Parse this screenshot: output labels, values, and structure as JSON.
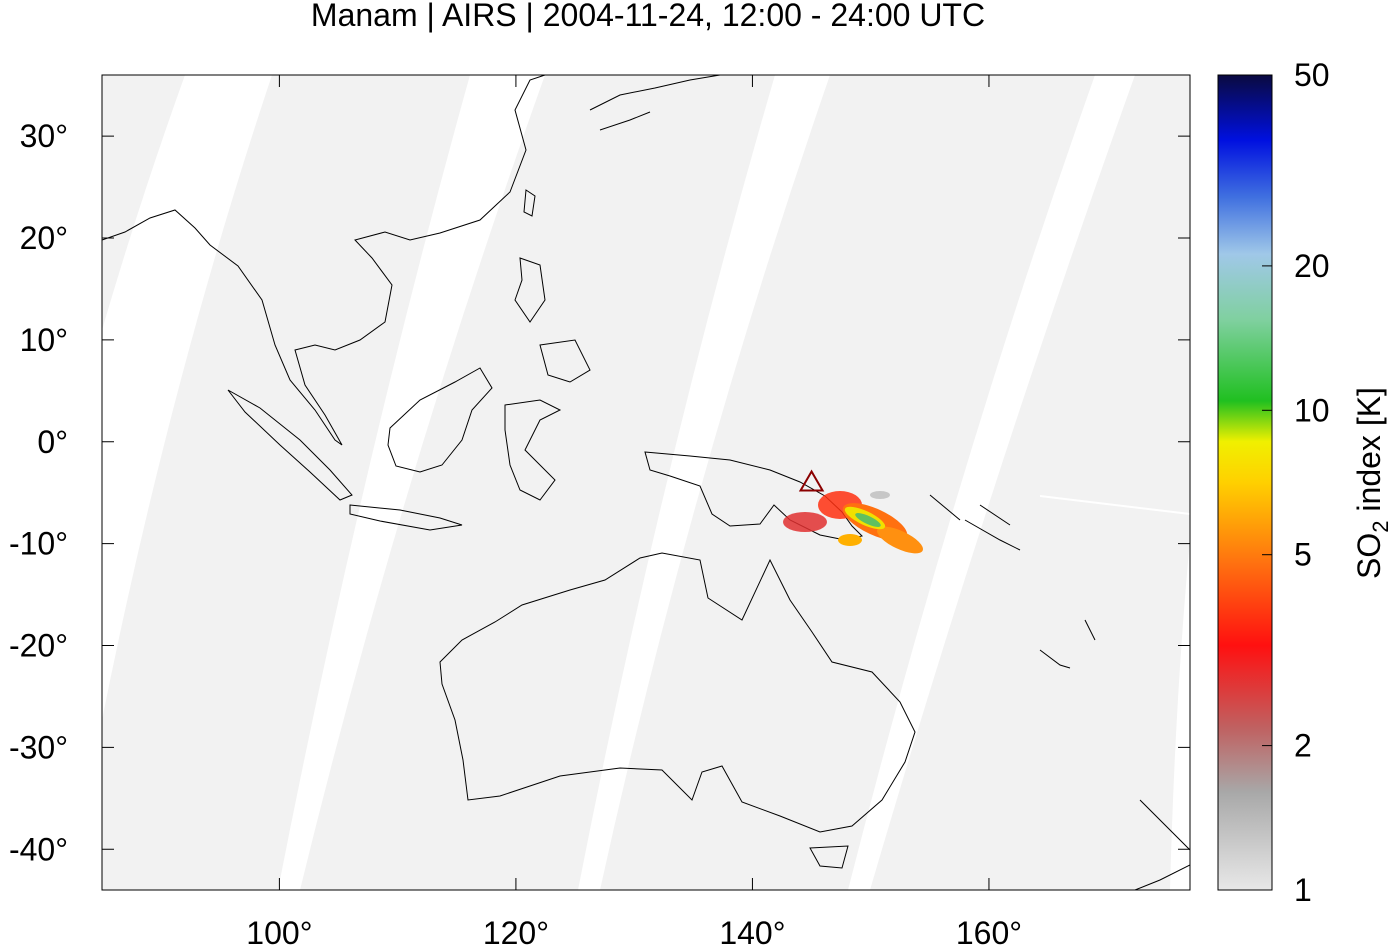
{
  "map": {
    "title": "Manam | AIRS | 2004-11-24, 12:00 - 24:00 UTC",
    "xlim": [
      85,
      177
    ],
    "ylim": [
      -44,
      36
    ],
    "xticks": [
      {
        "value": 100,
        "label": "100°"
      },
      {
        "value": 120,
        "label": "120°"
      },
      {
        "value": 140,
        "label": "140°"
      },
      {
        "value": 160,
        "label": "160°"
      }
    ],
    "yticks": [
      {
        "value": 30,
        "label": "30°"
      },
      {
        "value": 20,
        "label": "20°"
      },
      {
        "value": 10,
        "label": "10°"
      },
      {
        "value": 0,
        "label": "0°"
      },
      {
        "value": -10,
        "label": "-10°"
      },
      {
        "value": -20,
        "label": "-20°"
      },
      {
        "value": -30,
        "label": "-30°"
      },
      {
        "value": -40,
        "label": "-40°"
      }
    ],
    "volcano": {
      "lon": 145,
      "lat": -4,
      "color": "#8b0000"
    },
    "colorbar": {
      "label_parts": [
        "SO",
        "2",
        " index [K]"
      ],
      "log": true,
      "lim": [
        1,
        50
      ],
      "ticks": [
        1,
        2,
        5,
        10,
        20,
        50
      ]
    }
  }
}
